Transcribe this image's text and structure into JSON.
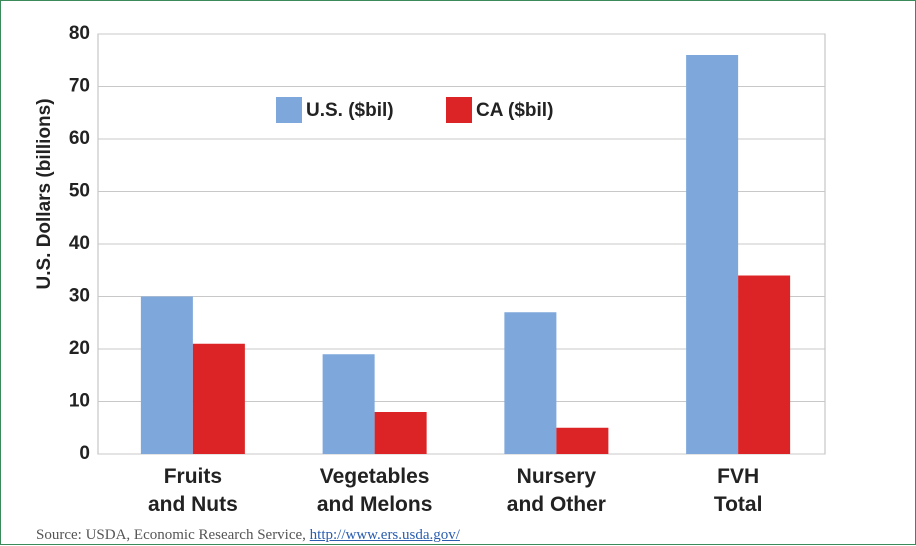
{
  "chart_data": {
    "type": "bar",
    "y_label": "U.S. Dollars (billions)",
    "categories": [
      "Fruits\nand Nuts",
      "Vegetables\nand Melons",
      "Nursery\nand Other",
      "FVH\nTotal"
    ],
    "series": [
      {
        "name": "U.S. ($bil)",
        "color": "#7ea7dc",
        "values": [
          30,
          19,
          27,
          76
        ]
      },
      {
        "name": "CA ($bil)",
        "color": "#dc2426",
        "values": [
          21,
          8,
          5,
          34
        ]
      }
    ],
    "ylim": [
      0,
      80
    ],
    "yticks": [
      0,
      10,
      20,
      30,
      40,
      50,
      60,
      70,
      80
    ],
    "grid": true
  },
  "source": {
    "text": "Source: USDA, Economic Research Service,",
    "link": "http://www.ers.usda.gov/"
  }
}
